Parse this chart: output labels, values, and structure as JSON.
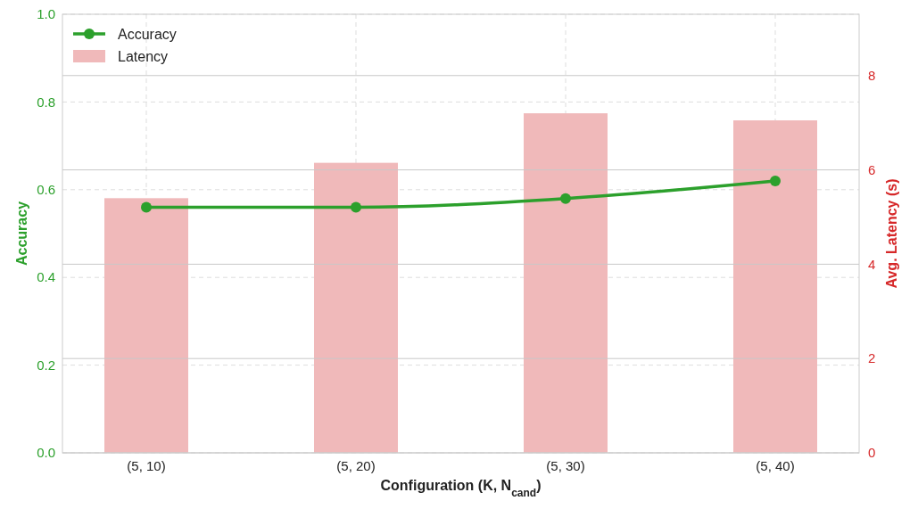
{
  "chart_data": {
    "type": "bar",
    "xlabel": "Configuration (K, N$_{cand}$)",
    "ylabel": "Accuracy",
    "y2label": "Avg. Latency (s)",
    "categories": [
      "(5, 10)",
      "(5, 20)",
      "(5, 30)",
      "(5, 40)"
    ],
    "series": [
      {
        "type": "line",
        "name": "Accuracy",
        "color": "#2ca02c",
        "values": [
          0.56,
          0.56,
          0.58,
          0.62
        ]
      },
      {
        "name": "Latency",
        "axis": "y2",
        "color": "#f0b9ba",
        "values": [
          5.4,
          6.15,
          7.2,
          7.05
        ]
      }
    ],
    "ylim": [
      0,
      1
    ],
    "yticks": [
      {
        "value": 0,
        "label": "0.0"
      },
      0.2,
      0.4,
      0.6,
      0.8,
      {
        "value": 1,
        "label": "1.0"
      }
    ],
    "y2lim": [
      0,
      9.3
    ],
    "y2ticks": [
      0,
      2,
      4,
      6,
      8
    ],
    "grid": true,
    "legend": "top left",
    "marker": "circle",
    "line_style": "solid"
  }
}
